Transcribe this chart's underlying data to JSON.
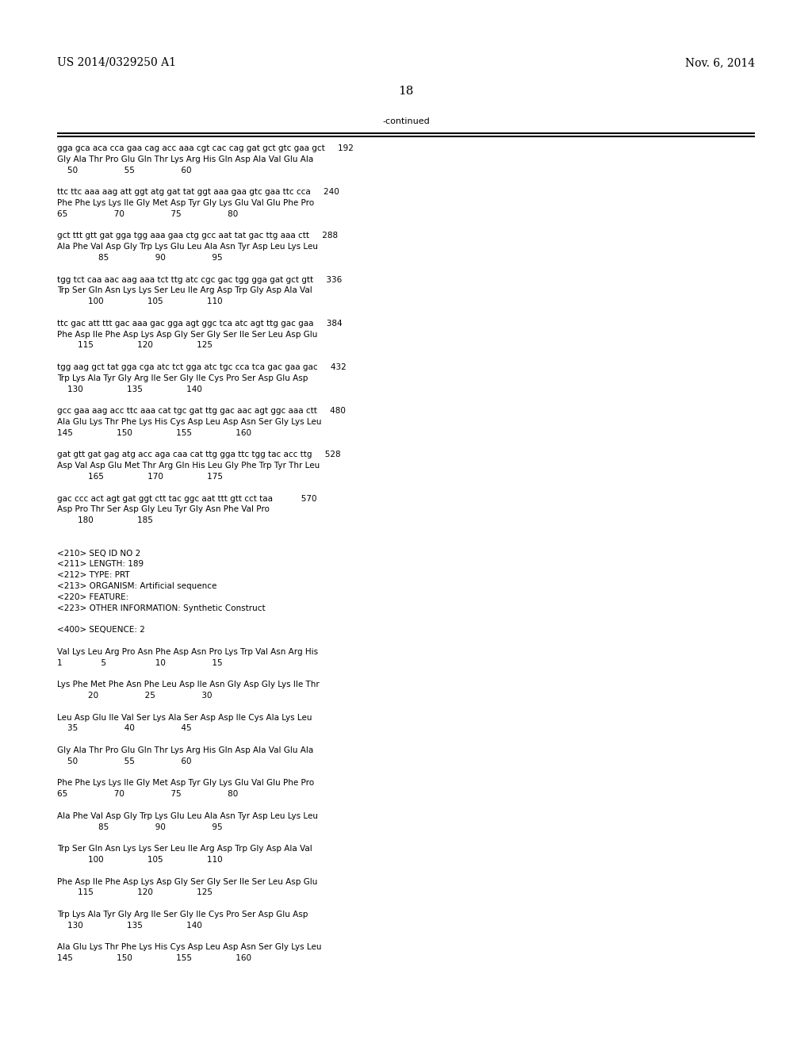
{
  "header_left": "US 2014/0329250 A1",
  "header_right": "Nov. 6, 2014",
  "page_number": "18",
  "continued_label": "-continued",
  "bg_color": "#ffffff",
  "text_color": "#000000",
  "font_size": 7.5,
  "mono_font": "Courier New",
  "header_font_size": 10.0,
  "page_num_font_size": 11.0,
  "content_lines": [
    "gga gca aca cca gaa cag acc aaa cgt cac cag gat gct gtc gaa gct     192",
    "Gly Ala Thr Pro Glu Gln Thr Lys Arg His Gln Asp Ala Val Glu Ala",
    "    50                  55                  60",
    "",
    "ttc ttc aaa aag att ggt atg gat tat ggt aaa gaa gtc gaa ttc cca     240",
    "Phe Phe Lys Lys Ile Gly Met Asp Tyr Gly Lys Glu Val Glu Phe Pro",
    "65                  70                  75                  80",
    "",
    "gct ttt gtt gat gga tgg aaa gaa ctg gcc aat tat gac ttg aaa ctt     288",
    "Ala Phe Val Asp Gly Trp Lys Glu Leu Ala Asn Tyr Asp Leu Lys Leu",
    "                85                  90                  95",
    "",
    "tgg tct caa aac aag aaa tct ttg atc cgc gac tgg gga gat gct gtt     336",
    "Trp Ser Gln Asn Lys Lys Ser Leu Ile Arg Asp Trp Gly Asp Ala Val",
    "            100                 105                 110",
    "",
    "ttc gac att ttt gac aaa gac gga agt ggc tca atc agt ttg gac gaa     384",
    "Phe Asp Ile Phe Asp Lys Asp Gly Ser Gly Ser Ile Ser Leu Asp Glu",
    "        115                 120                 125",
    "",
    "tgg aag gct tat gga cga atc tct gga atc tgc cca tca gac gaa gac     432",
    "Trp Lys Ala Tyr Gly Arg Ile Ser Gly Ile Cys Pro Ser Asp Glu Asp",
    "    130                 135                 140",
    "",
    "gcc gaa aag acc ttc aaa cat tgc gat ttg gac aac agt ggc aaa ctt     480",
    "Ala Glu Lys Thr Phe Lys His Cys Asp Leu Asp Asn Ser Gly Lys Leu",
    "145                 150                 155                 160",
    "",
    "gat gtt gat gag atg acc aga caa cat ttg gga ttc tgg tac acc ttg     528",
    "Asp Val Asp Glu Met Thr Arg Gln His Leu Gly Phe Trp Tyr Thr Leu",
    "            165                 170                 175",
    "",
    "gac ccc act agt gat ggt ctt tac ggc aat ttt gtt cct taa           570",
    "Asp Pro Thr Ser Asp Gly Leu Tyr Gly Asn Phe Val Pro",
    "        180                 185",
    "",
    "",
    "<210> SEQ ID NO 2",
    "<211> LENGTH: 189",
    "<212> TYPE: PRT",
    "<213> ORGANISM: Artificial sequence",
    "<220> FEATURE:",
    "<223> OTHER INFORMATION: Synthetic Construct",
    "",
    "<400> SEQUENCE: 2",
    "",
    "Val Lys Leu Arg Pro Asn Phe Asp Asn Pro Lys Trp Val Asn Arg His",
    "1               5                   10                  15",
    "",
    "Lys Phe Met Phe Asn Phe Leu Asp Ile Asn Gly Asp Gly Lys Ile Thr",
    "            20                  25                  30",
    "",
    "Leu Asp Glu Ile Val Ser Lys Ala Ser Asp Asp Ile Cys Ala Lys Leu",
    "    35                  40                  45",
    "",
    "Gly Ala Thr Pro Glu Gln Thr Lys Arg His Gln Asp Ala Val Glu Ala",
    "    50                  55                  60",
    "",
    "Phe Phe Lys Lys Ile Gly Met Asp Tyr Gly Lys Glu Val Glu Phe Pro",
    "65                  70                  75                  80",
    "",
    "Ala Phe Val Asp Gly Trp Lys Glu Leu Ala Asn Tyr Asp Leu Lys Leu",
    "                85                  90                  95",
    "",
    "Trp Ser Gln Asn Lys Lys Ser Leu Ile Arg Asp Trp Gly Asp Ala Val",
    "            100                 105                 110",
    "",
    "Phe Asp Ile Phe Asp Lys Asp Gly Ser Gly Ser Ile Ser Leu Asp Glu",
    "        115                 120                 125",
    "",
    "Trp Lys Ala Tyr Gly Arg Ile Ser Gly Ile Cys Pro Ser Asp Glu Asp",
    "    130                 135                 140",
    "",
    "Ala Glu Lys Thr Phe Lys His Cys Asp Leu Asp Asn Ser Gly Lys Leu",
    "145                 150                 155                 160"
  ]
}
